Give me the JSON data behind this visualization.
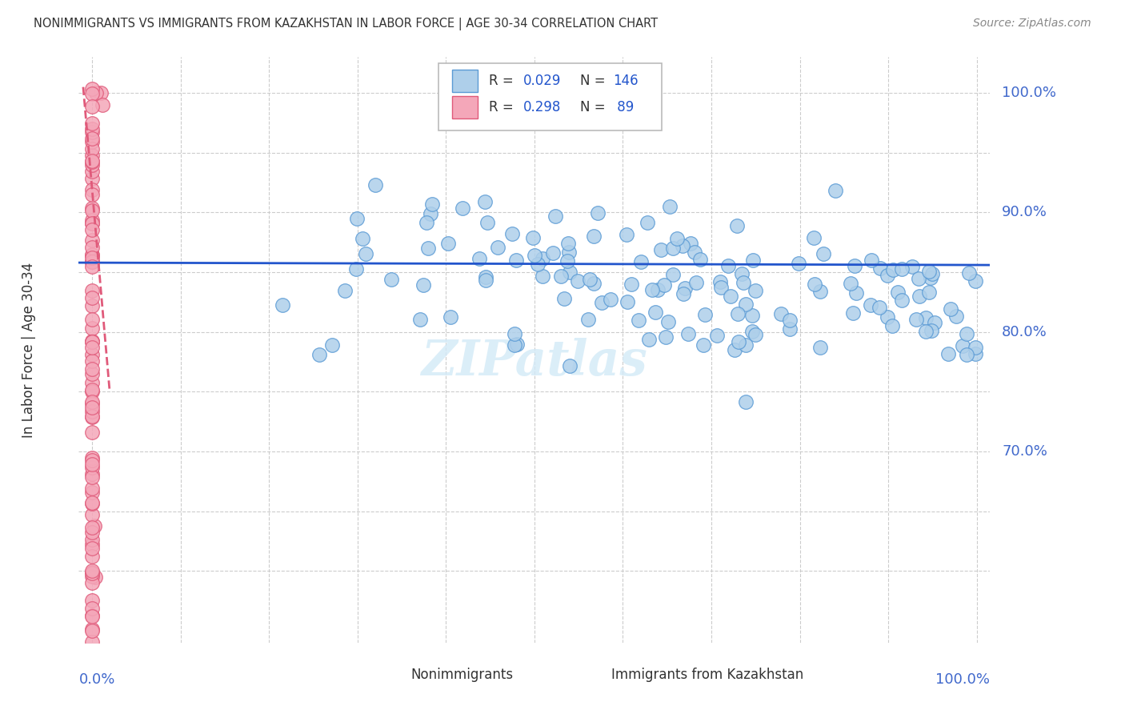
{
  "title": "NONIMMIGRANTS VS IMMIGRANTS FROM KAZAKHSTAN IN LABOR FORCE | AGE 30-34 CORRELATION CHART",
  "source": "Source: ZipAtlas.com",
  "ylabel": "In Labor Force | Age 30-34",
  "blue_fill": "#aecfea",
  "blue_edge": "#5b9bd5",
  "pink_fill": "#f4a7b9",
  "pink_edge": "#e05a7a",
  "blue_line_color": "#2255cc",
  "pink_line_color": "#cc2255",
  "legend_R_color": "#2255cc",
  "legend_N_color": "#2255cc",
  "right_label_color": "#4169cc",
  "grid_color": "#cccccc",
  "title_color": "#333333",
  "source_color": "#888888",
  "background_color": "#ffffff",
  "watermark": "ZIPatlas",
  "watermark_color": "#d3eaf7",
  "legend_blue_R": "0.029",
  "legend_blue_N": "146",
  "legend_pink_R": "0.298",
  "legend_pink_N": "89",
  "xlim": [
    -0.015,
    1.015
  ],
  "ylim": [
    0.54,
    1.03
  ],
  "y_grid_ticks": [
    0.6,
    0.65,
    0.7,
    0.75,
    0.8,
    0.85,
    0.9,
    0.95,
    1.0
  ],
  "y_label_ticks": [
    0.7,
    0.8,
    0.9,
    1.0
  ],
  "y_label_texts": [
    "70.0%",
    "80.0%",
    "90.0%",
    "100.0%"
  ],
  "x_label_ticks": [
    0.0,
    1.0
  ],
  "x_label_texts": [
    "0.0%",
    "100.0%"
  ]
}
